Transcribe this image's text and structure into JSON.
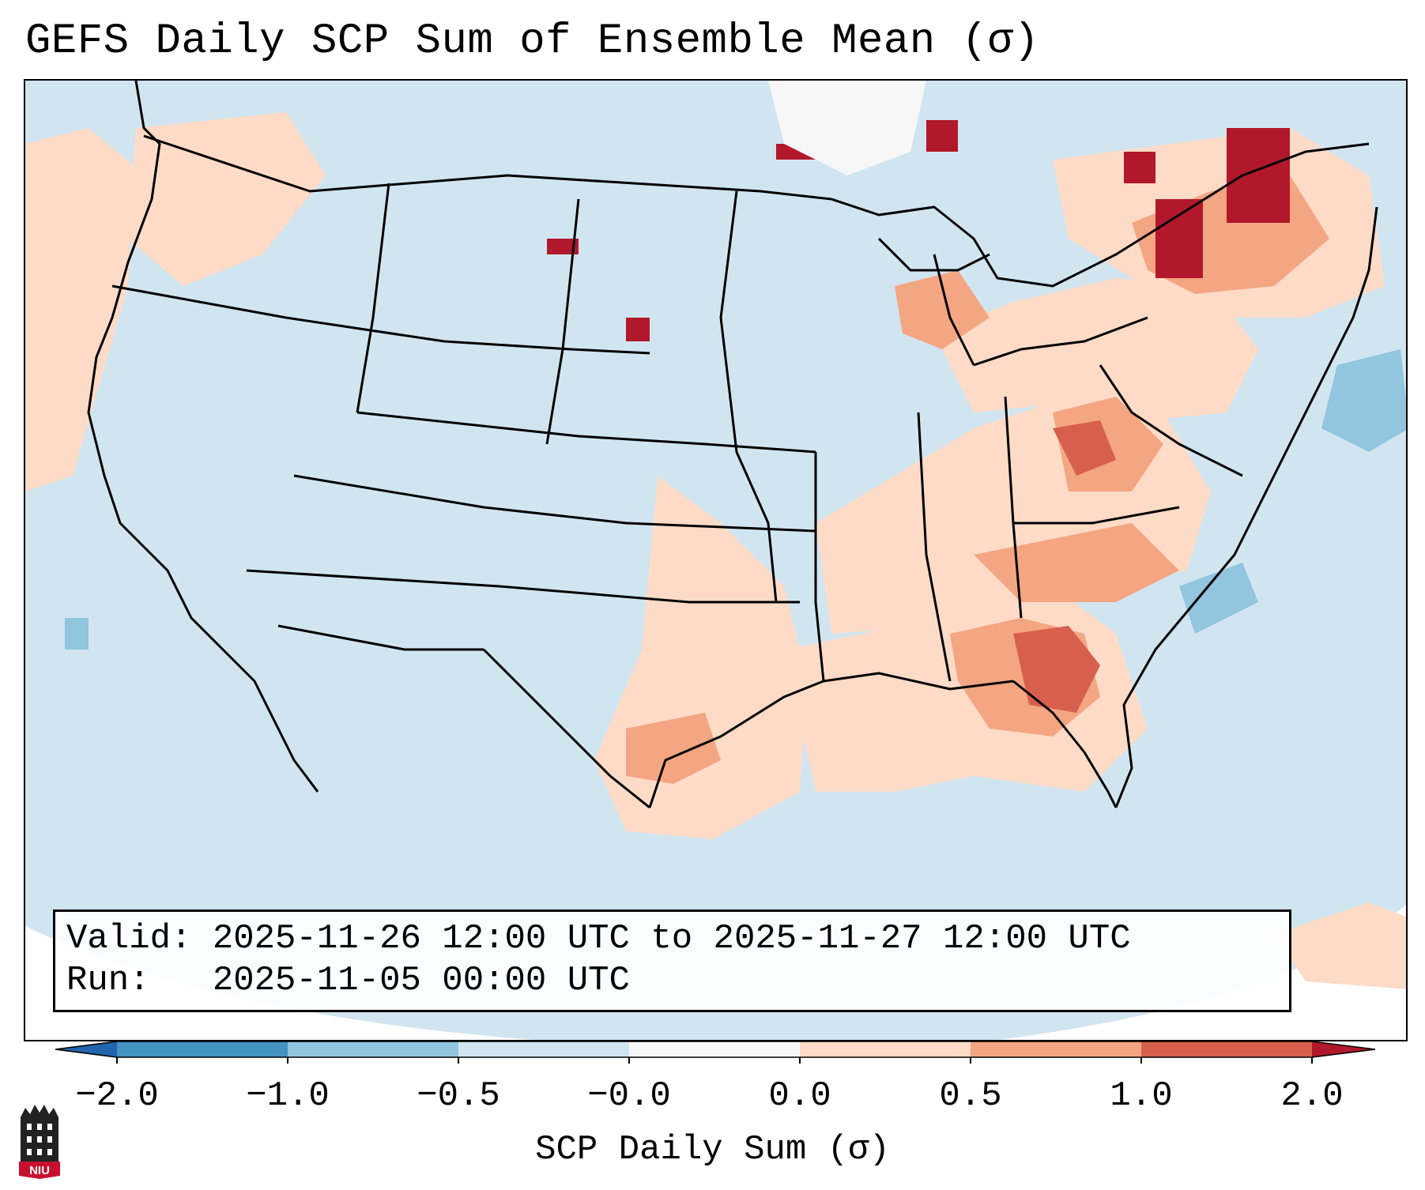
{
  "title": "GEFS Daily SCP Sum of Ensemble Mean (σ)",
  "info": {
    "valid_label": "Valid:",
    "valid_value": "2025-11-26 12:00 UTC to 2025-11-27 12:00 UTC",
    "run_label": "Run:",
    "run_value": "2025-11-05 00:00 UTC"
  },
  "colorbar": {
    "label": "SCP Daily Sum (σ)",
    "ticks": [
      "−2.0",
      "−1.0",
      "−0.5",
      "−0.0",
      "0.0",
      "0.5",
      "1.0",
      "2.0"
    ],
    "colors": {
      "extend_low": "#2166ac",
      "bin_1": "#4393c3",
      "bin_2": "#92c5de",
      "bin_3": "#d1e5f0",
      "bin_4": "#f7f7f7",
      "bin_5": "#fddbc7",
      "bin_6": "#f4a582",
      "bin_7": "#d6604d",
      "extend_high": "#b2182b"
    }
  },
  "map": {
    "ocean_color": "#d1e5f0",
    "land_color": "#d1e5f0",
    "boundary_color": "#000000"
  },
  "logo": {
    "text": "NIU"
  }
}
